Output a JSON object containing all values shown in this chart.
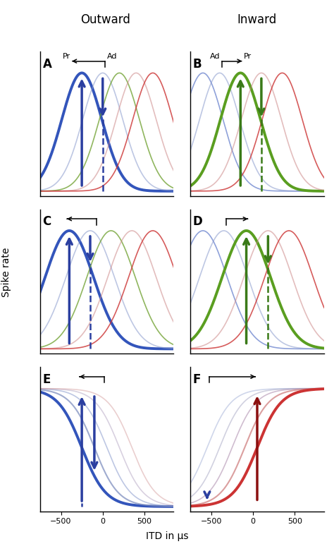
{
  "title_left": "Outward",
  "title_right": "Inward",
  "xlabel": "ITD in μs",
  "ylabel": "Spike rate",
  "panel_labels": [
    "A",
    "B",
    "C",
    "D",
    "E",
    "F"
  ],
  "xlim": [
    -750,
    850
  ],
  "xticks": [
    -500,
    0,
    500
  ],
  "bg_color": "#ffffff",
  "centers_A": [
    -250,
    0,
    200,
    400,
    600
  ],
  "sigma_A": 240,
  "colors_A": [
    "#3355bb",
    "#8899cc",
    "#6b9e2a",
    "#cc8888",
    "#cc3333"
  ],
  "lws_A": [
    2.8,
    1.2,
    1.2,
    1.2,
    1.2
  ],
  "alphas_A": [
    1.0,
    0.55,
    0.75,
    0.55,
    0.8
  ],
  "centers_B": [
    -600,
    -400,
    -150,
    100,
    350
  ],
  "sigma_B": 240,
  "colors_B": [
    "#3355bb",
    "#8899cc",
    "#5a9e20",
    "#cc8888",
    "#cc3333"
  ],
  "lws_B": [
    1.2,
    1.2,
    2.8,
    1.2,
    1.2
  ],
  "alphas_B": [
    0.55,
    0.55,
    1.0,
    0.55,
    0.8
  ],
  "centers_C": [
    -400,
    -150,
    100,
    350,
    600
  ],
  "sigma_C": 290,
  "colors_C": [
    "#3355bb",
    "#8899cc",
    "#6b9e2a",
    "#cc8888",
    "#cc3333"
  ],
  "lws_C": [
    2.8,
    1.2,
    1.2,
    1.2,
    1.2
  ],
  "alphas_C": [
    1.0,
    0.55,
    0.75,
    0.55,
    0.8
  ],
  "centers_D": [
    -600,
    -350,
    -80,
    180,
    430
  ],
  "sigma_D": 290,
  "colors_D": [
    "#3355bb",
    "#8899cc",
    "#5a9e20",
    "#cc8888",
    "#cc3333"
  ],
  "lws_D": [
    1.2,
    1.2,
    2.8,
    1.2,
    1.2
  ],
  "alphas_D": [
    0.55,
    0.55,
    1.0,
    0.55,
    0.8
  ],
  "centers_E": [
    -250,
    -100,
    50,
    200,
    350
  ],
  "colors_E": [
    "#3355bb",
    "#7788bb",
    "#8899cc",
    "#aa99bb",
    "#cc8888"
  ],
  "lws_E": [
    2.8,
    1.5,
    1.2,
    1.2,
    1.2
  ],
  "alphas_E": [
    1.0,
    0.7,
    0.55,
    0.45,
    0.4
  ],
  "k_E": 0.007,
  "centers_F": [
    -550,
    -400,
    -250,
    -100,
    50
  ],
  "colors_F": [
    "#8899cc",
    "#9999bb",
    "#aa88aa",
    "#cc7777",
    "#cc3333"
  ],
  "lws_F": [
    1.2,
    1.2,
    1.2,
    1.5,
    2.8
  ],
  "alphas_F": [
    0.4,
    0.45,
    0.55,
    0.7,
    1.0
  ],
  "k_F": 0.007,
  "arrow_blue": "#2b3fa0",
  "arrow_green": "#3a7a18",
  "arrow_darkred": "#8b1010"
}
